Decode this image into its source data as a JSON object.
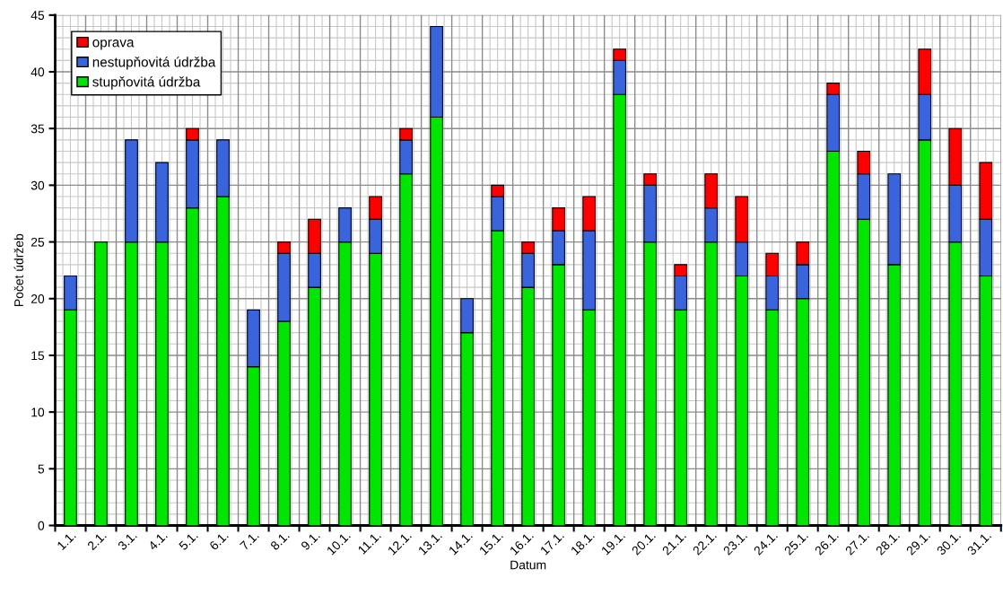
{
  "chart_data": {
    "type": "bar",
    "stacked": true,
    "xlabel": "Datum",
    "ylabel": "Počet údržeb",
    "categories": [
      "1.1.",
      "2.1.",
      "3.1.",
      "4.1.",
      "5.1.",
      "6.1.",
      "7.1.",
      "8.1.",
      "9.1.",
      "10.1.",
      "11.1.",
      "12.1.",
      "13.1.",
      "14.1.",
      "15.1.",
      "16.1.",
      "17.1.",
      "18.1.",
      "19.1.",
      "20.1.",
      "21.1.",
      "22.1.",
      "23.1.",
      "24.1.",
      "25.1.",
      "26.1.",
      "27.1.",
      "28.1.",
      "29.1.",
      "30.1.",
      "31.1."
    ],
    "series": [
      {
        "name": "stupňovitá údržba",
        "color": "#00e600",
        "values": [
          19,
          25,
          25,
          25,
          28,
          29,
          14,
          18,
          21,
          25,
          24,
          31,
          36,
          17,
          26,
          21,
          23,
          19,
          38,
          25,
          19,
          25,
          22,
          19,
          20,
          33,
          27,
          23,
          34,
          25,
          22
        ]
      },
      {
        "name": "nestupňovitá údržba",
        "color": "#3a64dc",
        "values": [
          3,
          0,
          9,
          7,
          6,
          5,
          5,
          6,
          3,
          3,
          3,
          3,
          8,
          3,
          3,
          3,
          3,
          7,
          3,
          5,
          3,
          3,
          3,
          3,
          3,
          5,
          4,
          8,
          4,
          5,
          5
        ]
      },
      {
        "name": "oprava",
        "color": "#ff0000",
        "values": [
          0,
          0,
          0,
          0,
          1,
          0,
          0,
          1,
          3,
          0,
          2,
          1,
          0,
          0,
          1,
          1,
          2,
          3,
          1,
          1,
          1,
          3,
          4,
          2,
          2,
          1,
          2,
          0,
          4,
          5,
          5
        ]
      }
    ],
    "ylim": [
      0,
      45
    ],
    "yticks": [
      0,
      5,
      10,
      15,
      20,
      25,
      30,
      35,
      40,
      45
    ],
    "grid": true,
    "legend": "top left"
  }
}
